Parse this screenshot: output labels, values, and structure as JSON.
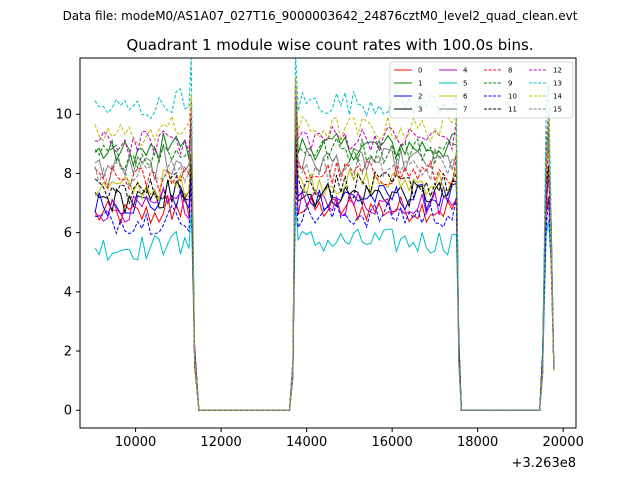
{
  "header": {
    "data_file_text": "Data file: modeM0/AS1A07_027T16_9000003642_24876cztM0_level2_quad_clean.evt",
    "title": "Quadrant 1 module wise count rates with 100.0s bins."
  },
  "chart_data": {
    "type": "line",
    "title": "Quadrant 1 module wise count rates with 100.0s bins.",
    "xlabel": "",
    "ylabel": "",
    "x_offset_text": "+3.263e8",
    "x_offset_value": 326300000,
    "xlim": [
      8700,
      20300
    ],
    "ylim": [
      -0.6,
      11.9
    ],
    "x_ticks": [
      10000,
      12000,
      14000,
      16000,
      18000,
      20000
    ],
    "x_tick_labels": [
      "10000",
      "12000",
      "14000",
      "16000",
      "18000",
      "20000"
    ],
    "y_ticks": [
      0,
      2,
      4,
      6,
      8,
      10
    ],
    "y_tick_labels": [
      "0",
      "2",
      "4",
      "6",
      "8",
      "10"
    ],
    "grid": false,
    "legend_location": "upper right",
    "legend_columns": 4,
    "series": [
      {
        "name": "0",
        "color": "#ff0000",
        "dash": "solid",
        "base": 6.6
      },
      {
        "name": "1",
        "color": "#008000",
        "dash": "solid",
        "base": 8.7
      },
      {
        "name": "2",
        "color": "#0000ff",
        "dash": "solid",
        "base": 7.0
      },
      {
        "name": "3",
        "color": "#000000",
        "dash": "solid",
        "base": 7.1
      },
      {
        "name": "4",
        "color": "#bf00bf",
        "dash": "solid",
        "base": 6.8
      },
      {
        "name": "5",
        "color": "#00bfbf",
        "dash": "solid",
        "base": 5.5
      },
      {
        "name": "6",
        "color": "#bfbf00",
        "dash": "solid",
        "base": 7.5
      },
      {
        "name": "7",
        "color": "#808080",
        "dash": "solid",
        "base": 8.2
      },
      {
        "name": "8",
        "color": "#ff0000",
        "dash": "dashed",
        "base": 7.8
      },
      {
        "name": "9",
        "color": "#008000",
        "dash": "dashed",
        "base": 8.6
      },
      {
        "name": "10",
        "color": "#0000ff",
        "dash": "dashed",
        "base": 6.4
      },
      {
        "name": "11",
        "color": "#000000",
        "dash": "dashed",
        "base": 7.4
      },
      {
        "name": "12",
        "color": "#bf00bf",
        "dash": "dashed",
        "base": 9.0
      },
      {
        "name": "13",
        "color": "#00bfbf",
        "dash": "dashed",
        "base": 10.2
      },
      {
        "name": "14",
        "color": "#bfbf00",
        "dash": "dashed",
        "base": 9.3
      },
      {
        "name": "15",
        "color": "#808080",
        "dash": "dashed",
        "base": 8.0
      }
    ],
    "segments": [
      {
        "x_start": 9050,
        "x_end": 11250
      },
      {
        "x_start": 13800,
        "x_end": 17450
      },
      {
        "x_start": 19550,
        "x_end": 19750
      }
    ]
  }
}
